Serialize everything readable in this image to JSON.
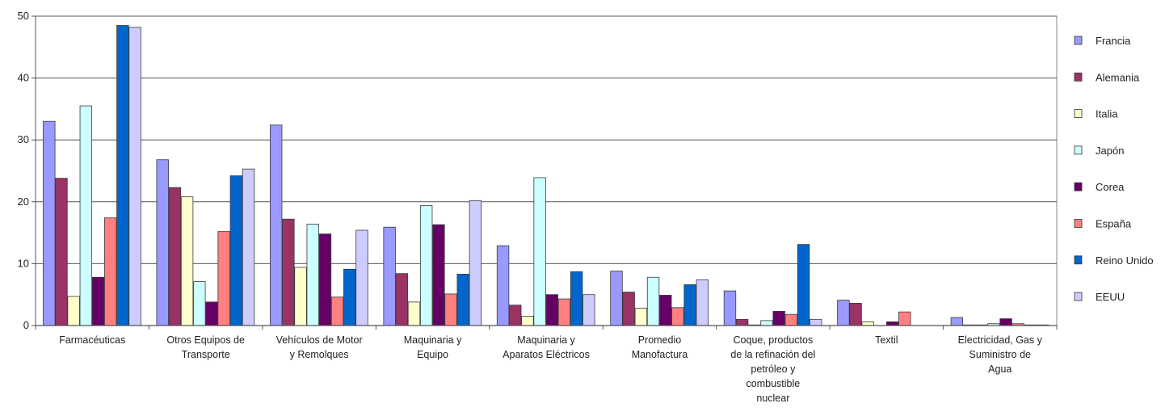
{
  "chart_data": {
    "type": "bar",
    "title": "",
    "xlabel": "",
    "ylabel": "",
    "ylim": [
      0,
      50
    ],
    "yticks": [
      0,
      10,
      20,
      30,
      40,
      50
    ],
    "grid": "horizontal",
    "legend_position": "right",
    "categories": [
      [
        "Farmacéuticas"
      ],
      [
        "Otros Equipos de",
        "Transporte"
      ],
      [
        "Vehículos de Motor",
        "y Remolques"
      ],
      [
        "Maquinaria y",
        "Equipo"
      ],
      [
        "Maquinaria y",
        "Aparatos Eléctricos"
      ],
      [
        "Promedio",
        "Manofactura"
      ],
      [
        "Coque, productos",
        "de la refinación del",
        "petróleo y",
        "combustible",
        "nuclear"
      ],
      [
        "Textil"
      ],
      [
        "Electricidad, Gas y",
        "Suministro de",
        "Agua"
      ]
    ],
    "series": [
      {
        "name": "Francia",
        "color": "#9999ff",
        "values": [
          33,
          26.8,
          32.4,
          15.9,
          12.9,
          8.8,
          5.6,
          4.1,
          1.3
        ]
      },
      {
        "name": "Alemania",
        "color": "#993366",
        "values": [
          23.8,
          22.3,
          17.2,
          8.4,
          3.3,
          5.4,
          1.0,
          3.6,
          0.1
        ]
      },
      {
        "name": "Italia",
        "color": "#ffffcc",
        "values": [
          4.7,
          20.8,
          9.4,
          3.8,
          1.5,
          2.8,
          0.1,
          0.6,
          0.1
        ]
      },
      {
        "name": "Japón",
        "color": "#ccffff",
        "values": [
          35.5,
          7.1,
          16.4,
          19.4,
          23.9,
          7.8,
          0.8,
          0.0,
          0.3
        ]
      },
      {
        "name": "Corea",
        "color": "#660066",
        "values": [
          7.8,
          3.8,
          14.8,
          16.3,
          5.0,
          4.9,
          2.3,
          0.6,
          1.1
        ]
      },
      {
        "name": "España",
        "color": "#ff8080",
        "values": [
          17.4,
          15.2,
          4.6,
          5.1,
          4.3,
          2.9,
          1.8,
          2.2,
          0.3
        ]
      },
      {
        "name": "Reino Unido",
        "color": "#0066cc",
        "values": [
          48.5,
          24.2,
          9.1,
          8.3,
          8.7,
          6.6,
          13.1,
          0.0,
          0.1
        ]
      },
      {
        "name": "EEUU",
        "color": "#ccccff",
        "values": [
          48.2,
          25.3,
          15.4,
          20.2,
          5.0,
          7.4,
          1.0,
          0.0,
          0.1
        ]
      }
    ]
  }
}
